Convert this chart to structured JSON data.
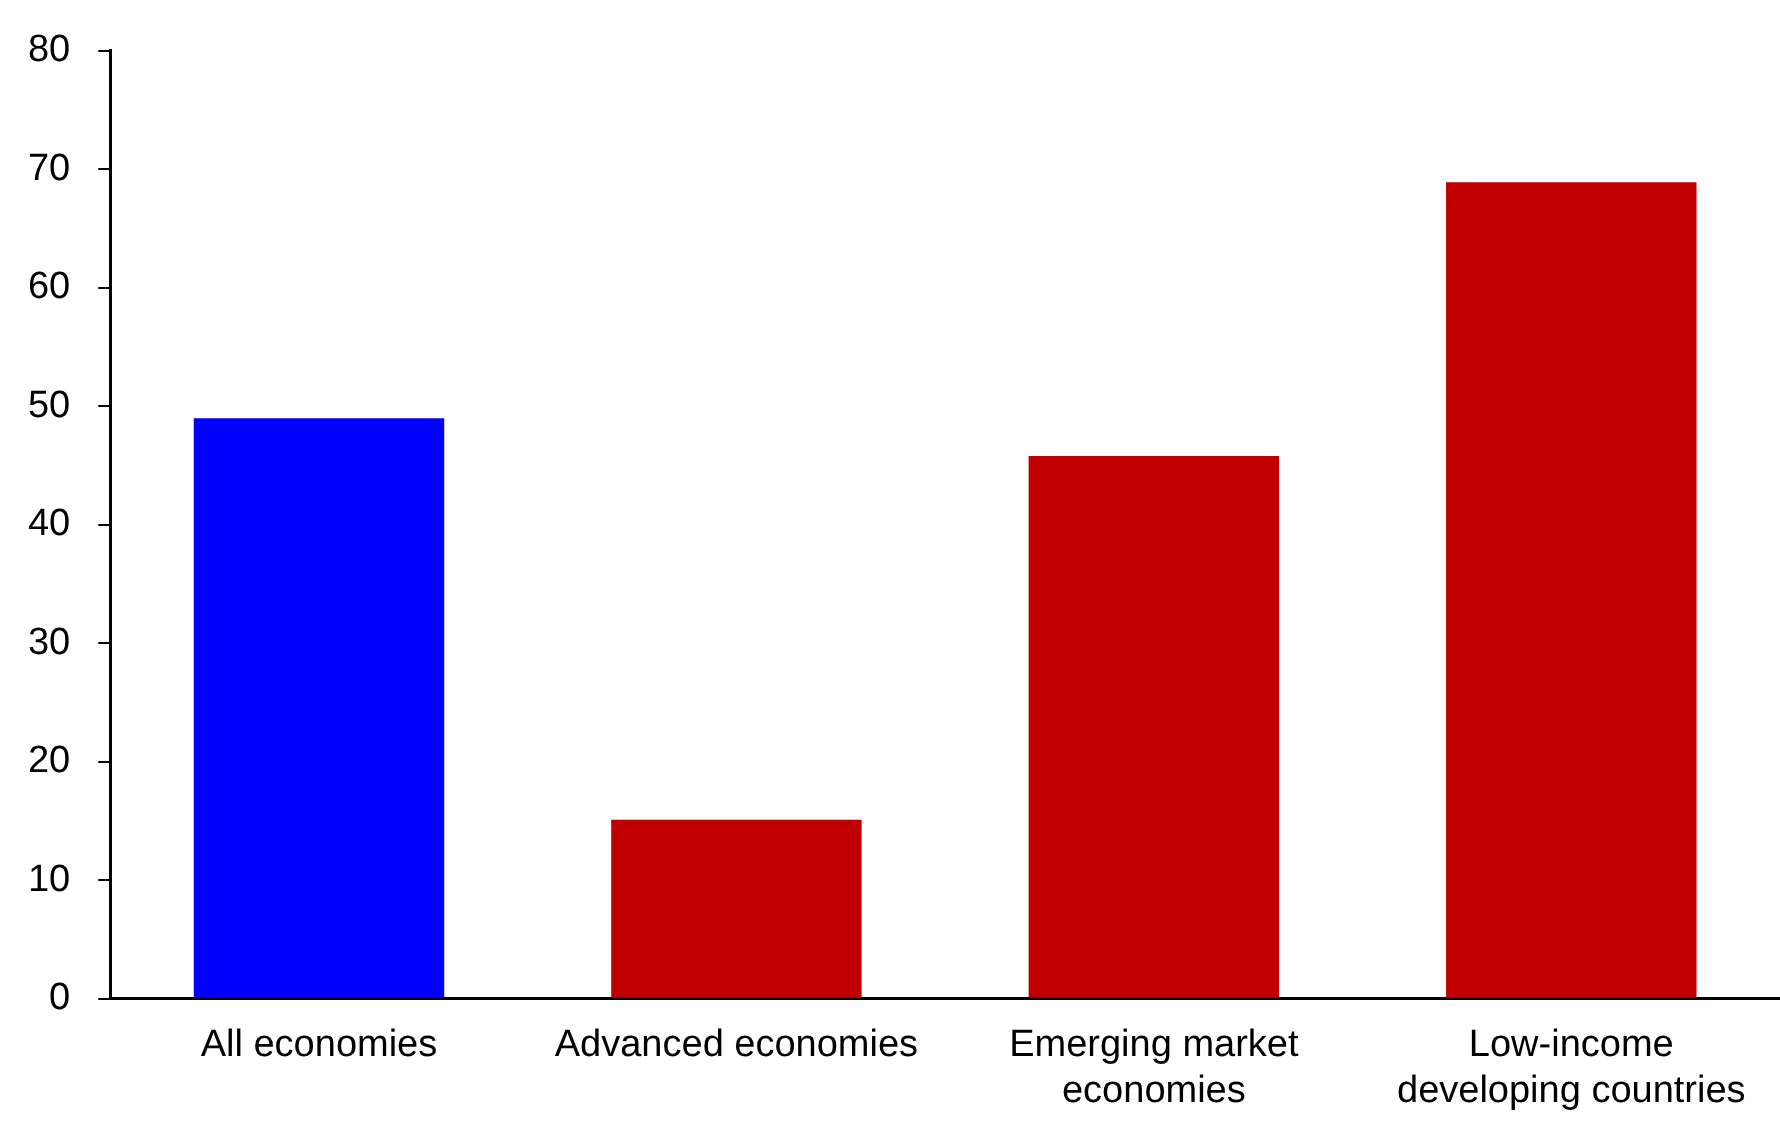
{
  "chart_data": {
    "type": "bar",
    "categories": [
      "All economies",
      "Advanced economies",
      "Emerging market economies",
      "Low-income developing countries"
    ],
    "values": [
      49,
      15.1,
      45.8,
      68.9
    ],
    "colors": [
      "#0000ff",
      "#c00000",
      "#c00000",
      "#c00000"
    ],
    "ylim": [
      0,
      80
    ],
    "yticks": [
      0,
      10,
      20,
      30,
      40,
      50,
      60,
      70,
      80
    ],
    "grid": false,
    "legend": false
  }
}
